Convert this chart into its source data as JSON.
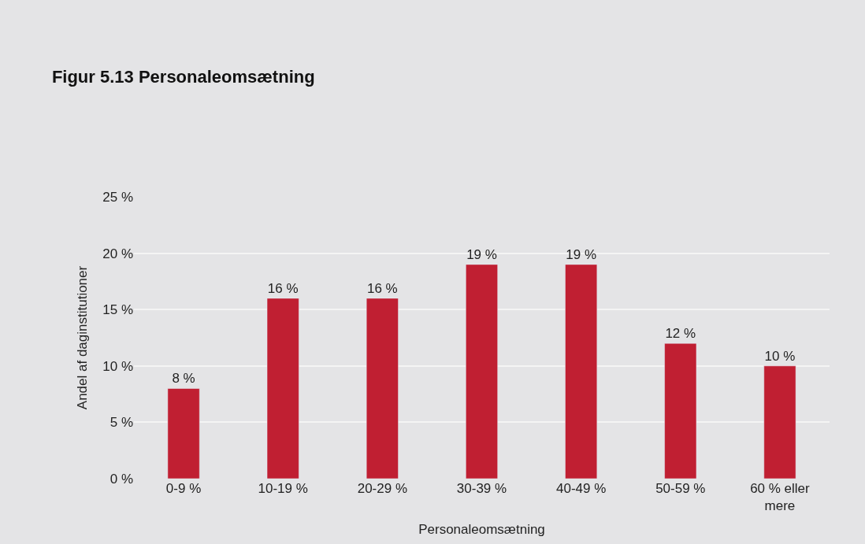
{
  "chart_data": {
    "type": "bar",
    "title": "Figur 5.13 Personaleomsætning",
    "categories": [
      "0-9 %",
      "10-19 %",
      "20-29 %",
      "30-39 %",
      "40-49 %",
      "50-59 %",
      "60 % eller mere"
    ],
    "values": [
      8,
      16,
      16,
      19,
      19,
      12,
      10
    ],
    "value_labels": [
      "8 %",
      "16 %",
      "16 %",
      "19 %",
      "19 %",
      "12 %",
      "10 %"
    ],
    "color": "#c01f32",
    "xlabel": "Personaleomsætning",
    "ylabel": "Andel af daginstitutioner",
    "ylim": [
      0,
      25
    ],
    "yticks": [
      {
        "value": 0,
        "label": "0 %"
      },
      {
        "value": 5,
        "label": "5 %"
      },
      {
        "value": 10,
        "label": "10 %"
      },
      {
        "value": 15,
        "label": "15 %"
      },
      {
        "value": 20,
        "label": "20 %"
      },
      {
        "value": 25,
        "label": "25 %"
      }
    ],
    "grid": "y"
  }
}
